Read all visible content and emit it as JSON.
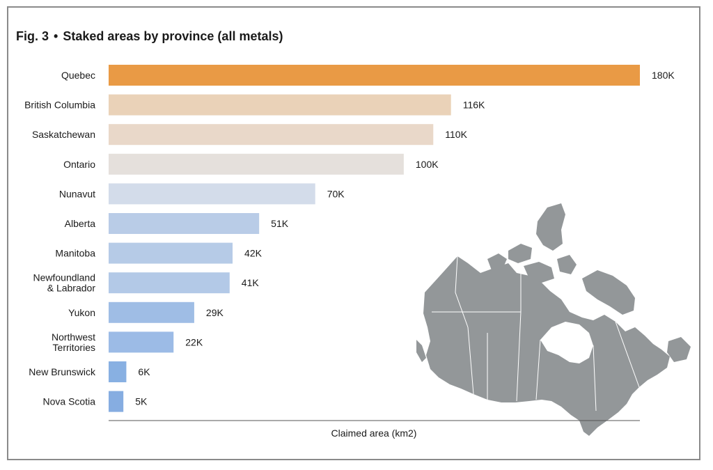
{
  "figure": {
    "prefix": "Fig. 3",
    "separator": "•",
    "title": "Staked areas by province (all metals)"
  },
  "chart_data": {
    "type": "bar",
    "orientation": "horizontal",
    "title": "Staked areas by province (all metals)",
    "xlabel": "Claimed area (km2)",
    "ylabel": "",
    "xlim": [
      0,
      180
    ],
    "grid": false,
    "categories": [
      "Quebec",
      "British Columbia",
      "Saskatchewan",
      "Ontario",
      "Nunavut",
      "Alberta",
      "Manitoba",
      "Newfoundland & Labrador",
      "Yukon",
      "Northwest Territories",
      "New Brunswick",
      "Nova Scotia"
    ],
    "category_lines": [
      [
        "Quebec"
      ],
      [
        "British Columbia"
      ],
      [
        "Saskatchewan"
      ],
      [
        "Ontario"
      ],
      [
        "Nunavut"
      ],
      [
        "Alberta"
      ],
      [
        "Manitoba"
      ],
      [
        "Newfoundland",
        "& Labrador"
      ],
      [
        "Yukon"
      ],
      [
        "Northwest",
        "Territories"
      ],
      [
        "New Brunswick"
      ],
      [
        "Nova Scotia"
      ]
    ],
    "values": [
      180,
      116,
      110,
      100,
      70,
      51,
      42,
      41,
      29,
      22,
      6,
      5
    ],
    "value_labels": [
      "180K",
      "116K",
      "110K",
      "100K",
      "70K",
      "51K",
      "42K",
      "41K",
      "29K",
      "22K",
      "6K",
      "5K"
    ],
    "colors": [
      "#e99a45",
      "#ead2b8",
      "#e9d8c9",
      "#e5e0dc",
      "#d3dcea",
      "#b9cce7",
      "#b6cbe7",
      "#b3c9e7",
      "#9fbde5",
      "#9cbbe6",
      "#88b0e2",
      "#86ade1"
    ],
    "map_color": "#939799"
  }
}
